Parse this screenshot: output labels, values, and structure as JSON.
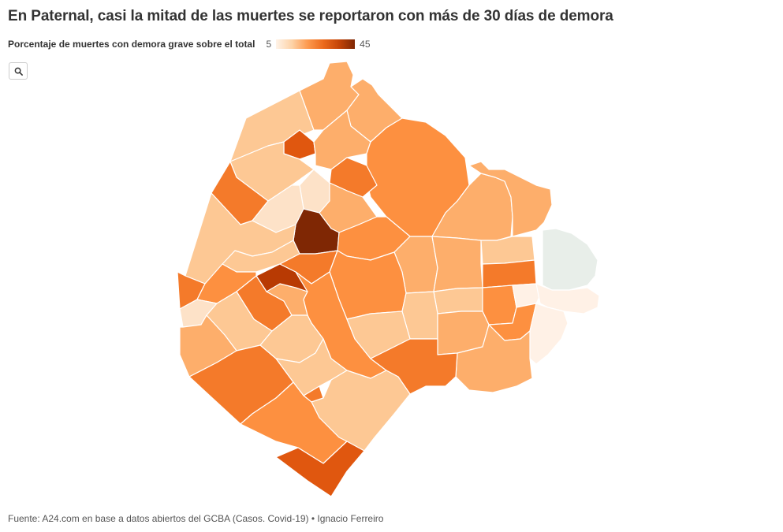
{
  "header": {
    "title": "En Paternal, casi la mitad de las muertes se reportaron con más de 30 días de demora"
  },
  "legend": {
    "label": "Porcentaje de muertes con demora grave sobre el total",
    "min": "5",
    "max": "45"
  },
  "controls": {
    "zoom_icon": "search-icon"
  },
  "footer": {
    "source": "Fuente: A24.com en base a datos abiertos del GCBA (Casos. Covid-19) • Ignacio Ferreiro"
  },
  "colors": {
    "c1": "#fff1e6",
    "c2": "#fde2c8",
    "c3": "#fdc894",
    "c4": "#fdae6b",
    "c5": "#fd9040",
    "c6": "#f47a2a",
    "c7": "#e0570f",
    "c8": "#b83a03",
    "c9": "#7f2704",
    "reserve": "#e8eee9"
  }
}
